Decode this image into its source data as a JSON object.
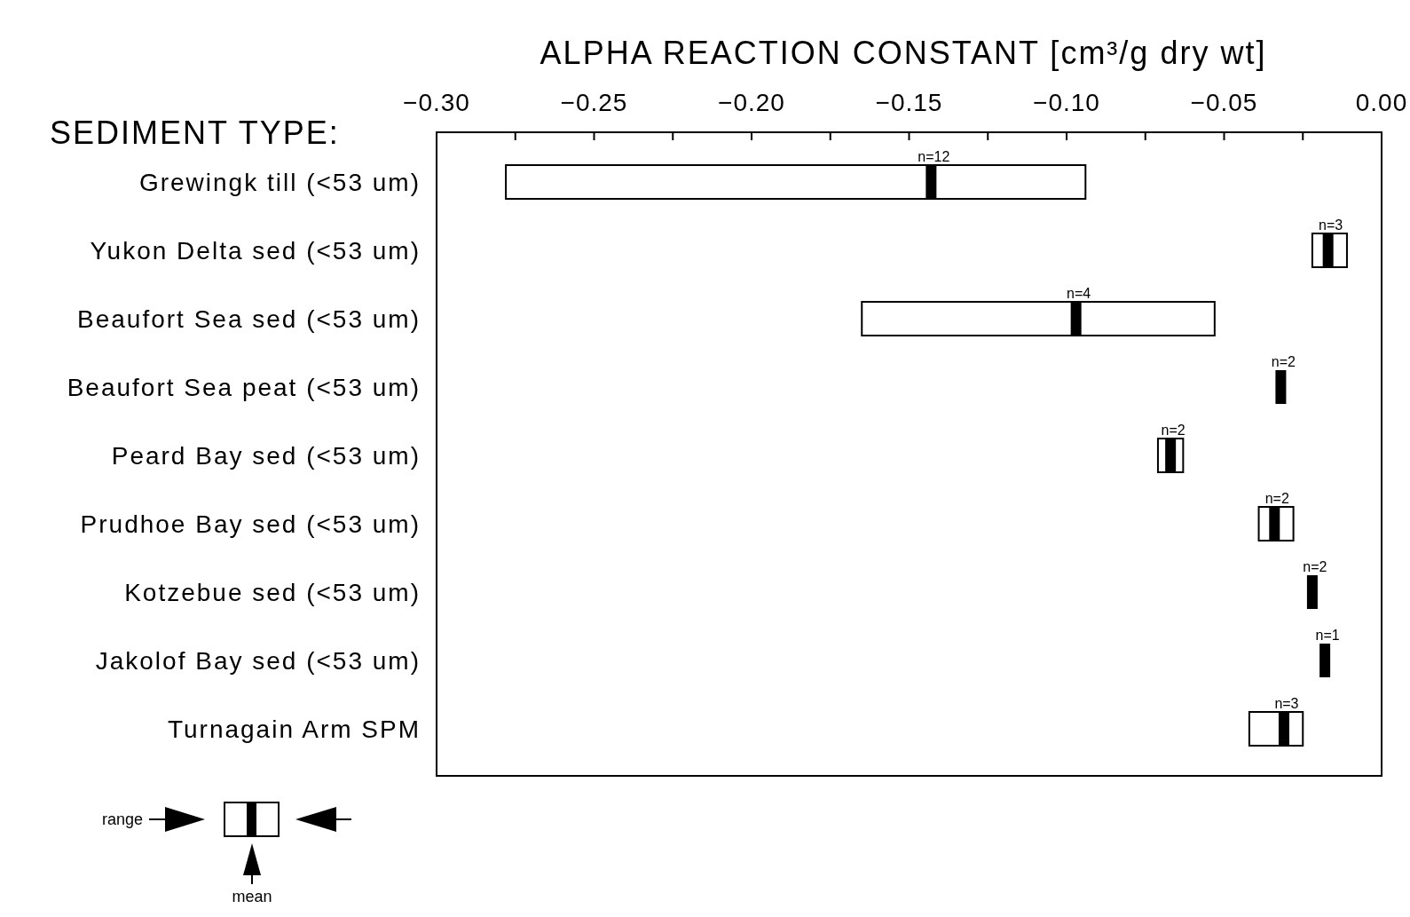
{
  "chart_data": {
    "type": "bar",
    "orientation": "horizontal",
    "grid": false,
    "xlabel": "ALPHA REACTION CONSTANT [cm³/g dry wt]",
    "ylabel": "SEDIMENT TYPE:",
    "categories": [
      "Grewingk till (<53 um)",
      "Yukon Delta sed (<53 um)",
      "Beaufort Sea sed (<53 um)",
      "Beaufort Sea peat (<53 um)",
      "Peard Bay sed (<53 um)",
      "Prudhoe Bay sed (<53 um)",
      "Kotzebue sed (<53 um)",
      "Jakolof Bay sed (<53 um)",
      "Turnagain Arm SPM"
    ],
    "series": [
      {
        "color": "#ffffff",
        "base": [
          -0.278,
          -0.022,
          -0.165,
          null,
          -0.071,
          -0.039,
          null,
          null,
          -0.042
        ],
        "values": [
          0.184,
          0.011,
          0.112,
          null,
          0.008,
          0.011,
          null,
          null,
          0.017
        ]
      },
      {
        "type": "scatter",
        "color": "#000000",
        "x": [
          "Grewingk till (<53 um)",
          "Yukon Delta sed (<53 um)",
          "Beaufort Sea sed (<53 um)",
          "Beaufort Sea peat (<53 um)",
          "Peard Bay sed (<53 um)",
          "Prudhoe Bay sed (<53 um)",
          "Kotzebue sed (<53 um)",
          "Jakolof Bay sed (<53 um)",
          "Turnagain Arm SPM"
        ],
        "values": [
          -0.143,
          -0.017,
          -0.097,
          -0.032,
          -0.067,
          -0.034,
          -0.022,
          -0.018,
          -0.031
        ]
      }
    ],
    "xlim": [
      -0.3,
      0
    ],
    "xticks": [
      {
        "value": -0.3,
        "label": "−0.30"
      },
      {
        "value": -0.275,
        "label": null
      },
      {
        "value": -0.25,
        "label": "−0.25"
      },
      {
        "value": -0.225,
        "label": null
      },
      {
        "value": -0.2,
        "label": "−0.20"
      },
      {
        "value": -0.175,
        "label": null
      },
      {
        "value": -0.15,
        "label": "−0.15"
      },
      {
        "value": -0.125,
        "label": null
      },
      {
        "value": -0.1,
        "label": "−0.10"
      },
      {
        "value": -0.075,
        "label": null
      },
      {
        "value": -0.05,
        "label": "−0.05"
      },
      {
        "value": -0.025,
        "label": null
      },
      {
        "value": 0,
        "label": "0.00"
      }
    ],
    "annotations": [
      "range",
      "mean",
      {
        "text": "n=12",
        "x": -0.143,
        "y": "Grewingk till (<53 um)"
      },
      {
        "text": "n=3",
        "x": -0.017,
        "y": "Yukon Delta sed (<53 um)"
      },
      {
        "text": "n=4",
        "x": -0.097,
        "y": "Beaufort Sea sed (<53 um)"
      },
      {
        "text": "n=2",
        "x": -0.032,
        "y": "Beaufort Sea peat (<53 um)"
      },
      {
        "text": "n=2",
        "x": -0.067,
        "y": "Peard Bay sed (<53 um)"
      },
      {
        "text": "n=2",
        "x": -0.034,
        "y": "Prudhoe Bay sed (<53 um)"
      },
      {
        "text": "n=2",
        "x": -0.022,
        "y": "Kotzebue sed (<53 um)"
      },
      {
        "text": "n=1",
        "x": -0.018,
        "y": "Jakolof Bay sed (<53 um)"
      },
      {
        "text": "n=3",
        "x": -0.031,
        "y": "Turnagain Arm SPM"
      }
    ]
  }
}
